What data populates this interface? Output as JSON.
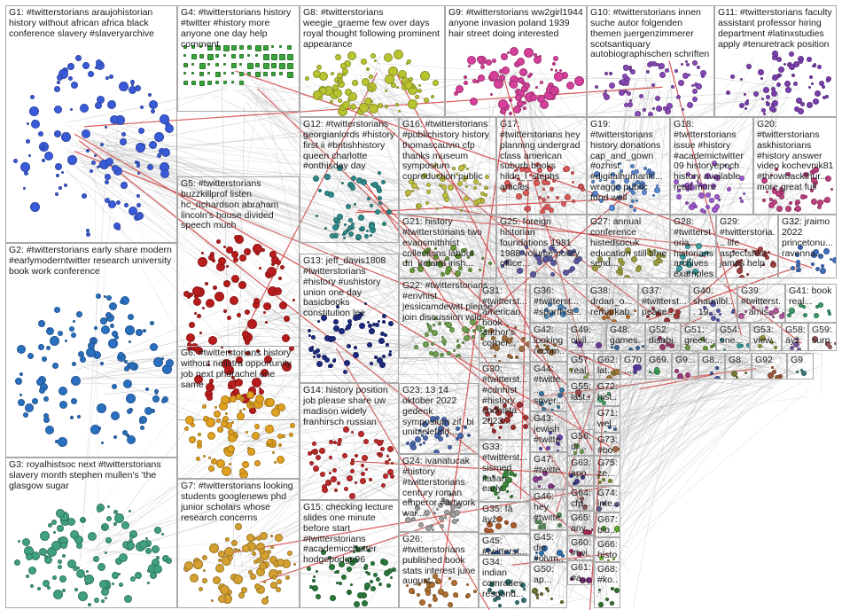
{
  "graph": {
    "edge_colors": [
      "#9a9a9a",
      "#b5b5b5",
      "#c8c8c8",
      "#d03030",
      "#b0b0b0"
    ],
    "groups": [
      {
        "id": "G1",
        "label": "G1: #twitterstorians araujohistorian history without african africa black conference slavery #slaveryarchive",
        "color": "#3a5bd9"
      },
      {
        "id": "G4",
        "label": "G4: #twitterstorians history #twitter #history more anyone one day help comment",
        "color": "#3aa33a"
      },
      {
        "id": "G8",
        "label": "G8: #twitterstorians weegie_graeme few over days royal thought following prominent appearance",
        "color": "#b8c430"
      },
      {
        "id": "G9",
        "label": "G9: #twitterstorians ww2girl1944 anyone invasion poland 1939 hair street doing interested",
        "color": "#d6409a"
      },
      {
        "id": "G10",
        "label": "G10: #twitterstorians innen suche autor folgenden themen juergenzimmerer scotsantiquary autobiographischen schriften",
        "color": "#8a4ab8"
      },
      {
        "id": "G11",
        "label": "G11: #twitterstorians faculty assistant professor hiring department #latinxstudies apply #tenuretrack position",
        "color": "#7b3fb0"
      },
      {
        "id": "G12",
        "label": "G12: #twitterstorians georgianlords #history first ii #britishhistory queen charlotte #onthisday day",
        "color": "#2f8c8c"
      },
      {
        "id": "G16",
        "label": "G16: #twitterstorians #publichistory history thomascauvin cfp thanks museum symposium coproduction public",
        "color": "#c0c040"
      },
      {
        "id": "G17",
        "label": "G17: #twitterstorians hey planning undergrad class american suburb books hilde_l_stephs articles",
        "color": "#e05a5a"
      },
      {
        "id": "G19",
        "label": "G19: #twitterstorians history donations cap_and_gown #ozhist #digitalhumaniti... wragge public fund well",
        "color": "#5a8ad6"
      },
      {
        "id": "G18",
        "label": "G18: #twitterstorians issue #history #academictwitter 09 historyepoch history available read more",
        "color": "#a05ad0"
      },
      {
        "id": "G20",
        "label": "G20: #twitterstorians askhistorians #history answer video kochevnik81 #throwbackthur... more great full",
        "color": "#c04080"
      },
      {
        "id": "G5",
        "label": "G5: #twitterstorians buzzkillprof listen hc_richardson abraham lincoln's house divided speech much",
        "color": "#b81c1c"
      },
      {
        "id": "G21",
        "label": "G21: history #twitterstorians two evansmithhist collections labour dri_ireland irish...",
        "color": "#6a9a3a"
      },
      {
        "id": "G25",
        "label": "G25: foreign historian foundations 1981 1988 volume policy office...",
        "color": "#5a5aa0"
      },
      {
        "id": "G27",
        "label": "G27: annual conference histedsocuk education still time send...",
        "color": "#a0a040"
      },
      {
        "id": "G28",
        "label": "G28: #twitterstoria... historians archives examples...",
        "color": "#40a0a0"
      },
      {
        "id": "G29",
        "label": "G29: #twitterstoria... life aspectshist james help",
        "color": "#a04040"
      },
      {
        "id": "G32",
        "label": "G32: jraimo 2022 princetonu... ravenna...",
        "color": "#4070c0"
      },
      {
        "id": "G13",
        "label": "G13: jeff_davis1808 #twitterstorians #history #ushistory union one day basicbooks constitution lee",
        "color": "#1c2a80"
      },
      {
        "id": "G2",
        "label": "G2: #twitterstorians early share modern #earlymoderntwitter research university book work conference",
        "color": "#2a70c0"
      },
      {
        "id": "G22",
        "label": "G22: #twitterstorians #envhist jessicamdewitt please join discussion wild...",
        "color": "#70a050"
      },
      {
        "id": "G31",
        "label": "G31: #twitterst... american book author's corner...",
        "color": "#a07040"
      },
      {
        "id": "G36",
        "label": "G36: #twitterst... #sporthist...",
        "color": "#4a8ac0"
      },
      {
        "id": "G38",
        "label": "G38: drdan_o... remarkab...",
        "color": "#c07030"
      },
      {
        "id": "G37",
        "label": "G37: #twitterst... peace...",
        "color": "#a03a3a"
      },
      {
        "id": "G40",
        "label": "G40: shaunlbl... 19...",
        "color": "#5a5ab0"
      },
      {
        "id": "G39",
        "label": "G39: #twitterst... amis...",
        "color": "#b05a9a"
      },
      {
        "id": "G41",
        "label": "G41: book real...",
        "color": "#3a9a6a"
      },
      {
        "id": "G42",
        "label": "G42: looking recom...",
        "color": "#9a6a3a"
      },
      {
        "id": "G49",
        "label": "G49: civil...",
        "color": "#6a3a9a"
      },
      {
        "id": "G48",
        "label": "G48: games...",
        "color": "#3a6a9a"
      },
      {
        "id": "G52",
        "label": "G52: disabi...",
        "color": "#9a3a6a"
      },
      {
        "id": "G51",
        "label": "G51: greek...",
        "color": "#6a9a3a"
      },
      {
        "id": "G54",
        "label": "G54: one...",
        "color": "#3a9a9a"
      },
      {
        "id": "G53",
        "label": "G53: view...",
        "color": "#9a9a3a"
      },
      {
        "id": "G58",
        "label": "G58: äyž",
        "color": "#7a5aa0"
      },
      {
        "id": "G59",
        "label": "G59: surp...",
        "color": "#a05a5a"
      },
      {
        "id": "G6",
        "label": "G6: #twitterstorians history without nellstra opportunity job next phdrachel one same",
        "color": "#e0a020"
      },
      {
        "id": "G30",
        "label": "G30: #twitterst... #cdnhist #history cndhista 2023...",
        "color": "#a03030"
      },
      {
        "id": "G44",
        "label": "G44: #twitte... sover...",
        "color": "#3a7aa0"
      },
      {
        "id": "G57",
        "label": "G57: real...",
        "color": "#7aa03a"
      },
      {
        "id": "G62",
        "label": "G62: lat...",
        "color": "#a07a3a"
      },
      {
        "id": "G70",
        "label": "G70...",
        "color": "#5a3aa0"
      },
      {
        "id": "G69",
        "label": "G69...",
        "color": "#3aa05a"
      },
      {
        "id": "G9b",
        "label": "G9...",
        "color": "#a03a7a"
      },
      {
        "id": "G8b",
        "label": "G8...",
        "color": "#3a5aa0"
      },
      {
        "id": "G8c",
        "label": "G8...",
        "color": "#7a7a3a"
      },
      {
        "id": "G92",
        "label": "G92",
        "color": "#a05a3a"
      },
      {
        "id": "G9c",
        "label": "G9",
        "color": "#3a7a7a"
      },
      {
        "id": "G23",
        "label": "G23: 13 14 oktober 2022 gedenk symposium zif_bi unibielefeld...",
        "color": "#4a6ab0"
      },
      {
        "id": "G43",
        "label": "G43: jewish #twitte...",
        "color": "#6a4ab0"
      },
      {
        "id": "G55",
        "label": "G55: last...",
        "color": "#a04a4a"
      },
      {
        "id": "G72",
        "label": "G72: hist...",
        "color": "#4aa06a"
      },
      {
        "id": "G14",
        "label": "G14: history position job please share uw madison widely franhirsch russian",
        "color": "#c02a2a"
      },
      {
        "id": "G56",
        "label": "G56: dr...",
        "color": "#6aa04a"
      },
      {
        "id": "G71",
        "label": "G71: wel...",
        "color": "#4a6aa0"
      },
      {
        "id": "G73",
        "label": "G73: #bo...",
        "color": "#a06a4a"
      },
      {
        "id": "G33",
        "label": "G33: #twitterst... sismed italian early...",
        "color": "#3a8a3a"
      },
      {
        "id": "G47",
        "label": "G47: #twitte... bitte...",
        "color": "#8a3a8a"
      },
      {
        "id": "G63",
        "label": "G63: app...",
        "color": "#3a3a8a"
      },
      {
        "id": "G75",
        "label": "G75: ze...",
        "color": "#8a8a3a"
      },
      {
        "id": "G3",
        "label": "G3: royalhistsoc next #twitterstorians slavery month stephen mullen's 'the glasgow sugar",
        "color": "#40a080"
      },
      {
        "id": "G7",
        "label": "G7: #twitterstorians looking students googlenews phd junior scholars whose research concerns",
        "color": "#d4a030"
      },
      {
        "id": "G24",
        "label": "G24: ivanatucak #history #twitterstorians century roman emperor #artwork war...",
        "color": "#a0a0a0"
      },
      {
        "id": "G46",
        "label": "G46: hey #twitte...",
        "color": "#5a8a5a"
      },
      {
        "id": "G64",
        "label": "G64: cfp...",
        "color": "#8a5a5a"
      },
      {
        "id": "G74",
        "label": "G74: inte...",
        "color": "#5a5a8a"
      },
      {
        "id": "G15",
        "label": "G15: checking lecture slides one minute before start #twitterstorians #academicchatter hodgepodge96",
        "color": "#2a7a3a"
      },
      {
        "id": "G35",
        "label": "G35: fâ äyž",
        "color": "#aa5a2a"
      },
      {
        "id": "G45",
        "label": "G45: #twitterst... aktuellen...",
        "color": "#2a5aaa"
      },
      {
        "id": "G65",
        "label": "G65: any...",
        "color": "#aa2a5a"
      },
      {
        "id": "G67",
        "label": "G67: blo...",
        "color": "#5aaa2a"
      },
      {
        "id": "G26",
        "label": "G26: #twitterstorians published book stats interest june august...",
        "color": "#b07030"
      },
      {
        "id": "G45b",
        "label": "G45: die #olym...",
        "color": "#3070b0"
      },
      {
        "id": "G60",
        "label": "G60: #twi...",
        "color": "#b03070"
      },
      {
        "id": "G66",
        "label": "G66: histo...",
        "color": "#70b030"
      },
      {
        "id": "G34",
        "label": "G34: indian comrades respond...",
        "color": "#307070"
      },
      {
        "id": "G50",
        "label": "G50: ap...",
        "color": "#707030"
      },
      {
        "id": "G61",
        "label": "G61: #a...",
        "color": "#703070"
      },
      {
        "id": "G68",
        "label": "G68: #ko...",
        "color": "#307030"
      }
    ]
  }
}
